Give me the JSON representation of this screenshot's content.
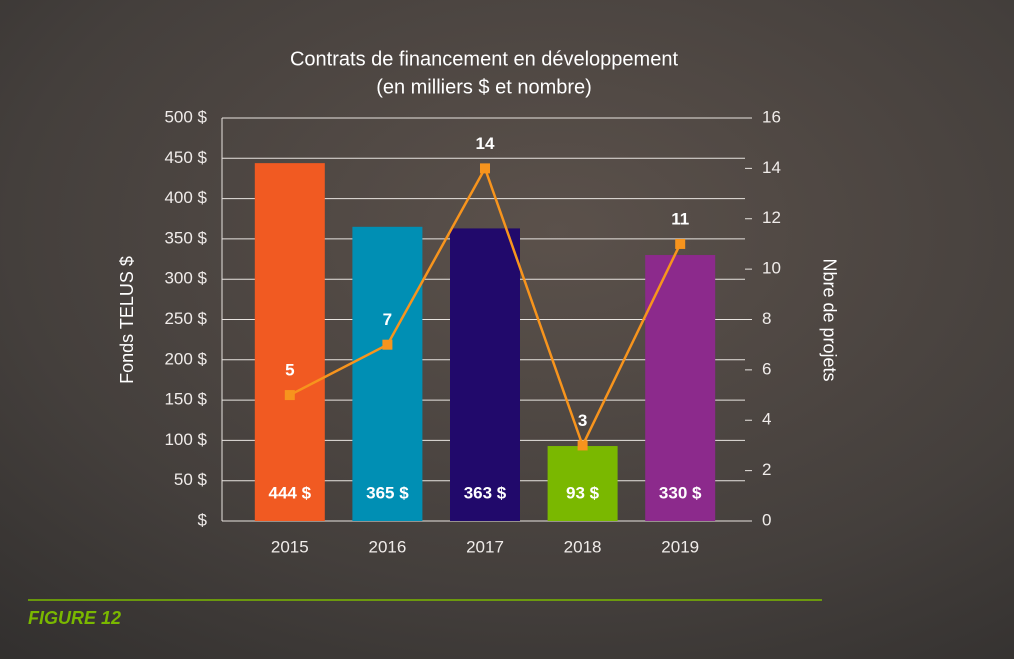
{
  "chart_data": {
    "type": "bar",
    "title": "Contrats de financement en développement",
    "subtitle": "(en milliers $ et nombre)",
    "ylabel": "Fonds TELUS $",
    "y2label": "Nbre de projets",
    "caption": "FIGURE 12",
    "categories": [
      "2015",
      "2016",
      "2017",
      "2018",
      "2019"
    ],
    "values": [
      444,
      365,
      363,
      93,
      330
    ],
    "value_labels": [
      "444 $",
      "365 $",
      "363 $",
      "93 $",
      "330 $"
    ],
    "colors": [
      "#f15a22",
      "#008fb4",
      "#21096b",
      "#7ab800",
      "#8c2a8c"
    ],
    "series": [
      {
        "type": "line",
        "color": "#f7941d",
        "axis": "y2",
        "values": [
          5,
          7,
          14,
          3,
          11
        ]
      }
    ],
    "ylim": [
      0,
      500
    ],
    "yticks": [
      {
        "value": 0,
        "label": "$"
      },
      {
        "value": 50,
        "label": "50 $"
      },
      {
        "value": 100,
        "label": "100 $"
      },
      {
        "value": 150,
        "label": "150 $"
      },
      {
        "value": 200,
        "label": "200 $"
      },
      {
        "value": 250,
        "label": "250 $"
      },
      {
        "value": 300,
        "label": "300 $"
      },
      {
        "value": 350,
        "label": "350 $"
      },
      {
        "value": 400,
        "label": "400 $"
      },
      {
        "value": 450,
        "label": "450 $"
      },
      {
        "value": 500,
        "label": "500 $"
      }
    ],
    "y2lim": [
      0,
      16
    ],
    "y2ticks": [
      0,
      2,
      4,
      6,
      8,
      10,
      12,
      14,
      16
    ],
    "grid": true
  }
}
